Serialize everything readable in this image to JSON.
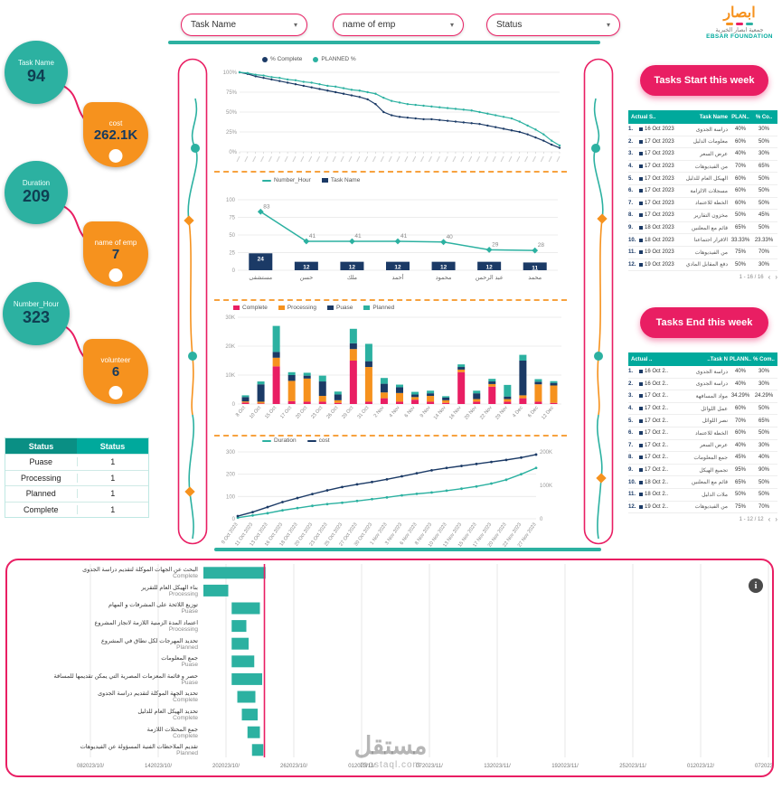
{
  "palette": {
    "teal": "#2cb1a1",
    "orange": "#f6921e",
    "pink": "#e91e63",
    "navy": "#1b3a66",
    "header_teal": "#00a99c"
  },
  "icons": {
    "caret": "▾",
    "info": "i",
    "pager_prev": "‹",
    "pager_next": "›"
  },
  "filters": [
    {
      "label": "Task Name"
    },
    {
      "label": "name of emp"
    },
    {
      "label": "Status"
    }
  ],
  "logo": {
    "brand": "ابصار",
    "name_ar": "جمعية ابصار الخيرية",
    "name_en": "EBSAR FOUNDATION"
  },
  "kpis": [
    {
      "label": "Task Name",
      "value": "94"
    },
    {
      "label": "cost",
      "value": "262.1K"
    },
    {
      "label": "Duration",
      "value": "209"
    },
    {
      "label": "name of emp",
      "value": "7"
    },
    {
      "label": "Number_Hour",
      "value": "323"
    },
    {
      "label": "volunteer",
      "value": "6"
    }
  ],
  "status_table": {
    "headers": [
      "Status",
      "Status"
    ],
    "rows": [
      [
        "Puase",
        "1"
      ],
      [
        "Processing",
        "1"
      ],
      [
        "Planned",
        "1"
      ],
      [
        "Complete",
        "1"
      ]
    ]
  },
  "tasks_start": {
    "title": "Tasks Start this week",
    "headers": [
      "Actual S..",
      "Task Name",
      "PLAN..",
      "% Co.."
    ],
    "rows": [
      [
        "1.",
        "16 Oct 2023",
        "دراسة الجدوى",
        "40%",
        "30%"
      ],
      [
        "2.",
        "17 Oct 2023",
        "معلومات الدليل",
        "60%",
        "50%"
      ],
      [
        "3.",
        "17 Oct 2023",
        "عرض السعر",
        "40%",
        "30%"
      ],
      [
        "4.",
        "17 Oct 2023",
        "من الفيديوهات",
        "70%",
        "65%"
      ],
      [
        "5.",
        "17 Oct 2023",
        "الهيكل العام للدليل",
        "60%",
        "50%"
      ],
      [
        "6.",
        "17 Oct 2023",
        "مسجلات الالزامة",
        "60%",
        "50%"
      ],
      [
        "7.",
        "17 Oct 2023",
        "الخطة للاعتماد",
        "60%",
        "50%"
      ],
      [
        "8.",
        "17 Oct 2023",
        "مخزون التقارير",
        "50%",
        "45%"
      ],
      [
        "9.",
        "18 Oct 2023",
        "قائم مع المعلنين",
        "65%",
        "50%"
      ],
      [
        "10.",
        "18 Oct 2023",
        "الاقرار اجتماعنا",
        "33.33%",
        "23.33%"
      ],
      [
        "11.",
        "19 Oct 2023",
        "من الفيديوهات",
        "75%",
        "70%"
      ],
      [
        "12.",
        "19 Oct 2023",
        "دفع المقابل المادي",
        "50%",
        "30%"
      ]
    ],
    "footer": "1 - 16 / 16"
  },
  "tasks_end": {
    "title": "Tasks End this week",
    "headers": [
      "Actual ..",
      "Task N..",
      "PLANN..",
      "% Com.."
    ],
    "rows": [
      [
        "1.",
        "16 Oct 2..",
        "دراسة الجدوى",
        "40%",
        "30%"
      ],
      [
        "2.",
        "16 Oct 2..",
        "دراسة الجدوى",
        "40%",
        "30%"
      ],
      [
        "3.",
        "17 Oct 2..",
        "مواد المسافهة",
        "34.29%",
        "24.29%"
      ],
      [
        "4.",
        "17 Oct 2..",
        "عمل اللوائل",
        "60%",
        "50%"
      ],
      [
        "5.",
        "17 Oct 2..",
        "نصر اللوائل",
        "70%",
        "65%"
      ],
      [
        "6.",
        "17 Oct 2..",
        "الخطة للاعتماد",
        "60%",
        "50%"
      ],
      [
        "7.",
        "17 Oct 2..",
        "عرض السعر",
        "40%",
        "30%"
      ],
      [
        "8.",
        "17 Oct 2..",
        "جمع المعلومات",
        "45%",
        "40%"
      ],
      [
        "9.",
        "17 Oct 2..",
        "تجميع الهيكل",
        "95%",
        "90%"
      ],
      [
        "10.",
        "18 Oct 2..",
        "قائم مع المعلنين",
        "65%",
        "50%"
      ],
      [
        "11.",
        "18 Oct 2..",
        "ملات الدليل",
        "50%",
        "50%"
      ],
      [
        "12.",
        "19 Oct 2..",
        "من الفيديوهات",
        "75%",
        "70%"
      ]
    ],
    "footer": "1 - 12 / 12"
  },
  "watermark": {
    "word": "مستقل",
    "site": "mostaql.com"
  },
  "chart_data": {
    "progress_lines": {
      "type": "line",
      "title": "",
      "y_ticks": [
        "0%",
        "25%",
        "50%",
        "75%",
        "100%"
      ],
      "ylim": [
        0,
        100
      ],
      "series": [
        {
          "name": "% Complete",
          "color": "navy",
          "values": [
            100,
            98,
            95,
            93,
            91,
            89,
            87,
            85,
            83,
            81,
            79,
            77,
            75,
            73,
            71,
            69,
            66,
            60,
            50,
            46,
            44,
            43,
            42,
            41,
            41,
            40,
            39,
            38,
            37,
            36,
            35,
            33,
            31,
            29,
            27,
            25,
            22,
            18,
            14,
            9,
            5
          ]
        },
        {
          "name": "PLANNED %",
          "color": "teal",
          "values": [
            100,
            99,
            97,
            96,
            94,
            93,
            91,
            90,
            88,
            87,
            85,
            83,
            82,
            80,
            78,
            77,
            75,
            73,
            68,
            64,
            62,
            60,
            59,
            58,
            57,
            56,
            55,
            54,
            53,
            52,
            50,
            48,
            46,
            44,
            42,
            38,
            33,
            28,
            22,
            14,
            8
          ]
        }
      ]
    },
    "hours_by_emp": {
      "type": "bar",
      "categories": [
        "مستشفى",
        "حسن",
        "ملك",
        "أحمد",
        "محمود",
        "عبد الرحمن",
        "محمد"
      ],
      "line": {
        "name": "Number_Hour",
        "color": "teal",
        "values": [
          83,
          41,
          41,
          41,
          40,
          29,
          28
        ]
      },
      "bar": {
        "name": "Task Name",
        "color": "navy",
        "values": [
          24,
          12,
          12,
          12,
          12,
          12,
          11
        ]
      },
      "ylim": [
        0,
        100
      ],
      "y_ticks": [
        "0",
        "25",
        "50",
        "75",
        "100"
      ]
    },
    "cost_stacked": {
      "type": "bar",
      "categories": [
        "8 Oct",
        "10 Oct",
        "15 Oct",
        "17 Oct",
        "20 Oct",
        "23 Oct",
        "26 Oct",
        "29 Oct",
        "31 Oct",
        "2 Nov",
        "4 Nov",
        "6 Nov",
        "9 Nov",
        "14 Nov",
        "16 Nov",
        "20 Nov",
        "22 Nov",
        "29 Nov",
        "4 Dec",
        "6 Dec",
        "12 Dec"
      ],
      "y_ticks": [
        "0",
        "10K",
        "20K",
        "30K"
      ],
      "ylim": [
        0,
        30000
      ],
      "series": [
        {
          "name": "Complete",
          "color": "pink",
          "values": [
            500,
            200,
            13000,
            1000,
            800,
            800,
            400,
            15000,
            800,
            2000,
            800,
            1500,
            800,
            400,
            11000,
            800,
            6000,
            800,
            2000,
            800,
            400
          ]
        },
        {
          "name": "Processing",
          "color": "orange",
          "values": [
            400,
            600,
            3000,
            7000,
            8000,
            2000,
            900,
            4000,
            12000,
            2000,
            3000,
            900,
            2000,
            900,
            900,
            900,
            900,
            900,
            1000,
            6000,
            6000
          ]
        },
        {
          "name": "Puase",
          "color": "navy",
          "values": [
            1500,
            6000,
            2000,
            2000,
            1000,
            5000,
            2000,
            2000,
            2000,
            3000,
            2000,
            900,
            900,
            900,
            900,
            2000,
            900,
            900,
            12000,
            900,
            900
          ]
        },
        {
          "name": "Planned",
          "color": "teal",
          "values": [
            600,
            1000,
            9000,
            1000,
            1000,
            2000,
            1000,
            5000,
            6000,
            2000,
            900,
            900,
            900,
            500,
            900,
            900,
            900,
            4000,
            2000,
            900,
            600
          ]
        }
      ]
    },
    "duration_cost": {
      "type": "line",
      "categories": [
        "9 Oct 2023",
        "11 Oct 2023",
        "13 Oct 2023",
        "16 Oct 2023",
        "18 Oct 2023",
        "20 Oct 2023",
        "23 Oct 2023",
        "25 Oct 2023",
        "27 Oct 2023",
        "30 Oct 2023",
        "1 Nov 2023",
        "3 Nov 2023",
        "6 Nov 2023",
        "8 Nov 2023",
        "10 Nov 2023",
        "13 Nov 2023",
        "15 Nov 2023",
        "17 Nov 2023",
        "20 Nov 2023",
        "22 Nov 2023",
        "27 Nov 2023"
      ],
      "left_ticks": [
        "0",
        "100",
        "200",
        "300"
      ],
      "right_ticks": [
        "0",
        "100K",
        "200K"
      ],
      "ylim_left": [
        0,
        300
      ],
      "ylim_right": [
        0,
        200000
      ],
      "series": [
        {
          "name": "Duration",
          "color": "teal",
          "axis": "left",
          "values": [
            5,
            15,
            25,
            38,
            48,
            58,
            66,
            72,
            80,
            88,
            96,
            105,
            112,
            118,
            126,
            135,
            145,
            158,
            175,
            200,
            228
          ]
        },
        {
          "name": "cost",
          "color": "navy",
          "axis": "right",
          "values": [
            8000,
            20000,
            35000,
            50000,
            62000,
            74000,
            85000,
            95000,
            103000,
            110000,
            118000,
            127000,
            136000,
            145000,
            152000,
            158000,
            164000,
            170000,
            176000,
            183000,
            192000
          ]
        }
      ]
    },
    "gantt": {
      "type": "gantt",
      "axis_labels": [
        "082023/10/",
        "142023/10/",
        "202023/10/",
        "262023/10/",
        "012023/11/",
        "072023/11/",
        "132023/11/",
        "192023/11/",
        "252023/11/",
        "012023/12/",
        "072023/12/"
      ],
      "days_per_tick": 6,
      "today_day": 15.4,
      "rows": [
        {
          "task": "البحث عن الجهات الموكلة لتقديم دراسة الجدوى",
          "status": "Complete",
          "start": 10,
          "end": 15.5
        },
        {
          "task": "بناء الهيكل العام للتقرير",
          "status": "Processing",
          "start": 10,
          "end": 12.2
        },
        {
          "task": "توزيع اللائحة على المشرفات و المهام",
          "status": "Puase",
          "start": 12.5,
          "end": 15
        },
        {
          "task": "اعتماد المدة الزمنية اللازمة لانجاز المشروع",
          "status": "Processing",
          "start": 12.5,
          "end": 13.8
        },
        {
          "task": "تحديد المهرجات لكل نطاق في المشروع",
          "status": "Planned",
          "start": 12.5,
          "end": 14
        },
        {
          "task": "جمع المعلومات",
          "status": "Puase",
          "start": 12.5,
          "end": 14.5
        },
        {
          "task": "حصر و قائمة المعزمات المصرية التي يمكن تقديمها للمسافة",
          "status": "Puase",
          "start": 12.5,
          "end": 15.2
        },
        {
          "task": "تحديد الجهة الموكلة لتقديم دراسة الجدوى",
          "status": "Complete",
          "start": 13,
          "end": 14.6
        },
        {
          "task": "تحديد الهيكل العام للدليل",
          "status": "Complete",
          "start": 13.4,
          "end": 14.8
        },
        {
          "task": "جمع المحتلات اللازمة",
          "status": "Complete",
          "start": 13.9,
          "end": 15
        },
        {
          "task": "تقديم الملاحظات الفنية المسؤولة عن الفيديوهات",
          "status": "Planned",
          "start": 14.3,
          "end": 15.3
        }
      ]
    }
  }
}
